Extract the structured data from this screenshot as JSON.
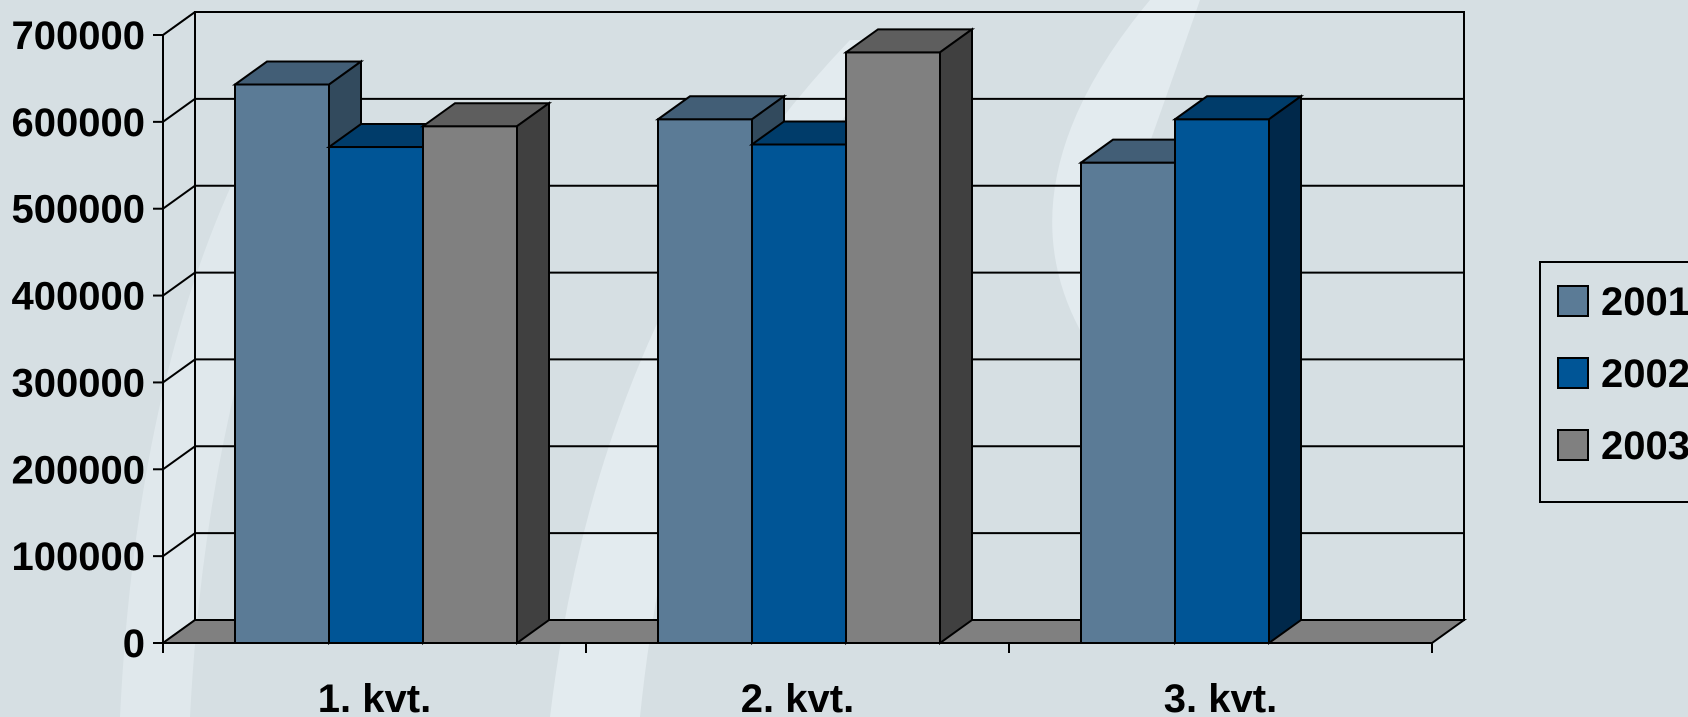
{
  "chart_data": {
    "type": "bar",
    "categories": [
      "1. kvt.",
      "2. kvt.",
      "3. kvt."
    ],
    "series": [
      {
        "name": "2001",
        "values": [
          643000,
          603000,
          553000
        ],
        "color": "#5b7b96",
        "side": "#324a5d",
        "top": "#425e76"
      },
      {
        "name": "2002",
        "values": [
          571000,
          574000,
          603000
        ],
        "color": "#005596",
        "side": "#00284a",
        "top": "#003c6a"
      },
      {
        "name": "2003",
        "values": [
          595000,
          680000,
          null
        ],
        "color": "#808080",
        "side": "#404040",
        "top": "#5e5e5e"
      }
    ],
    "yticks": [
      "0",
      "100000",
      "200000",
      "300000",
      "400000",
      "500000",
      "600000",
      "700000"
    ],
    "ylim": [
      0,
      700000
    ],
    "legend": "right",
    "grid": true,
    "colors": {
      "background": "#d6dfe3",
      "floor": "#808080",
      "frame": "#000000"
    }
  }
}
